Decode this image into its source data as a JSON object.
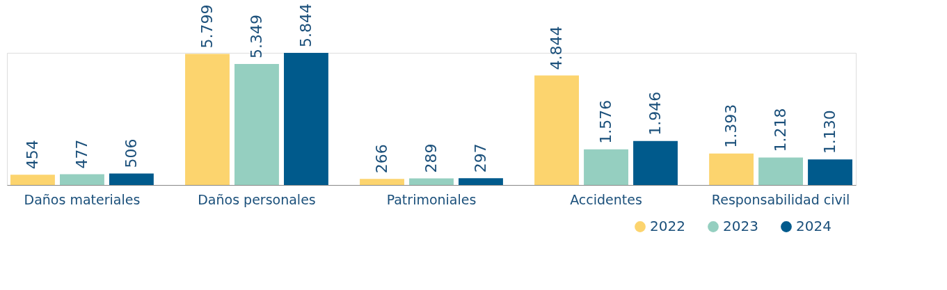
{
  "chart_data": {
    "type": "bar",
    "categories": [
      "Daños materiales",
      "Daños personales",
      "Patrimoniales",
      "Accidentes",
      "Responsabilidad civil"
    ],
    "series": [
      {
        "name": "2022",
        "color": "#fcd46e",
        "values": [
          454,
          5799,
          266,
          4844,
          1393
        ],
        "value_labels": [
          "454",
          "5.799",
          "266",
          "4.844",
          "1.393"
        ]
      },
      {
        "name": "2023",
        "color": "#95cfc0",
        "values": [
          477,
          5349,
          289,
          1576,
          1218
        ],
        "value_labels": [
          "477",
          "5.349",
          "289",
          "1.576",
          "1.218"
        ]
      },
      {
        "name": "2024",
        "color": "#005a8c",
        "values": [
          506,
          5844,
          297,
          1946,
          1130
        ],
        "value_labels": [
          "506",
          "5.844",
          "297",
          "1.946",
          "1.130"
        ]
      }
    ],
    "legend": "bottom right",
    "grid": false
  }
}
